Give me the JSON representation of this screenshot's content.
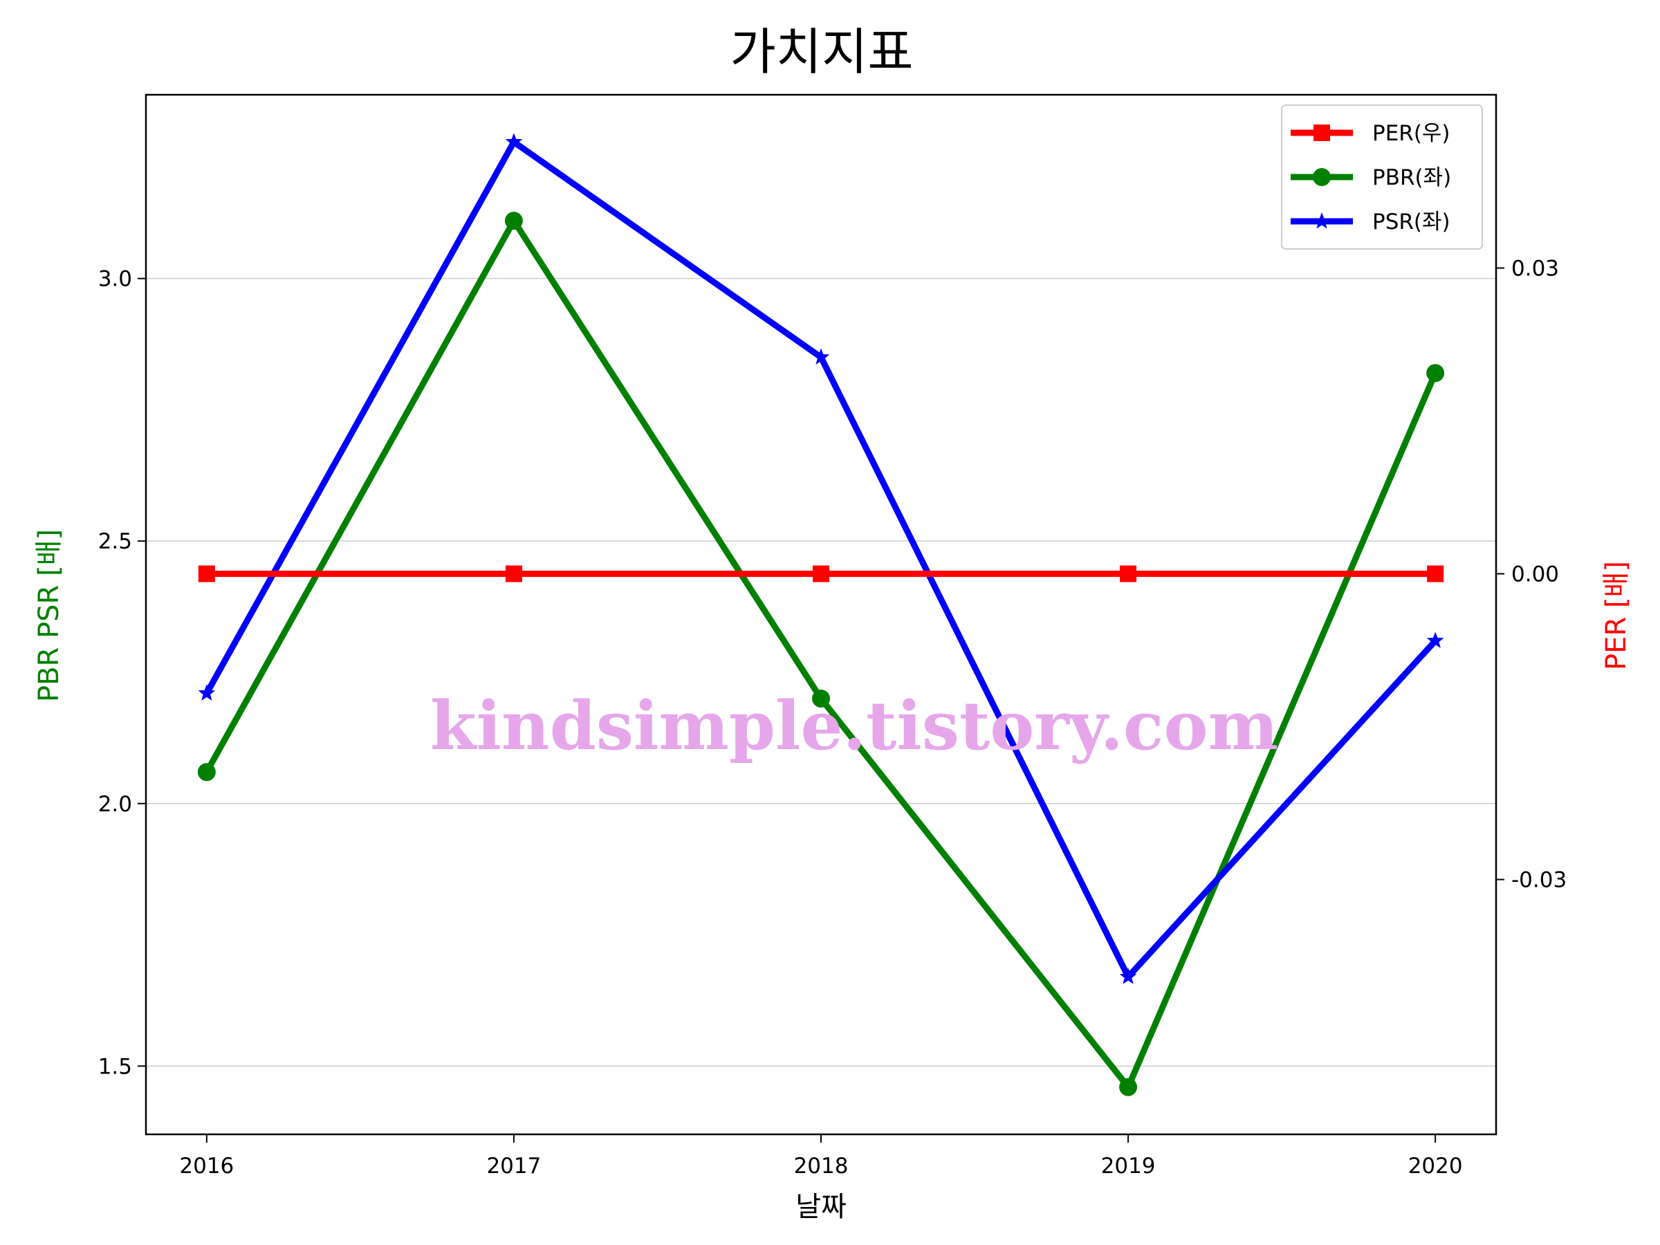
{
  "chart_data": {
    "type": "line",
    "title": "가치지표",
    "xlabel": "날짜",
    "ylabel_left": "PBR PSR [배]",
    "ylabel_right": "PER [배]",
    "x": [
      "2016",
      "2017",
      "2018",
      "2019",
      "2020"
    ],
    "ylim_left": [
      1.37,
      3.35
    ],
    "ylim_right": [
      -0.055,
      0.047
    ],
    "yticks_left": [
      "1.5",
      "2.0",
      "2.5",
      "3.0"
    ],
    "yticks_right": [
      "-0.03",
      "0.00",
      "0.03"
    ],
    "grid": "horizontal",
    "legend_position": "top-right",
    "series": [
      {
        "name": "PER(우)",
        "axis": "right",
        "color": "#ff0000",
        "marker": "square",
        "values": [
          0,
          0,
          0,
          0,
          0
        ]
      },
      {
        "name": "PBR(좌)",
        "axis": "left",
        "color": "#008000",
        "marker": "circle",
        "values": [
          2.06,
          3.11,
          2.2,
          1.46,
          2.82
        ]
      },
      {
        "name": "PSR(좌)",
        "axis": "left",
        "color": "#0000ff",
        "marker": "star",
        "values": [
          2.21,
          3.26,
          2.85,
          1.67,
          2.31
        ]
      }
    ],
    "watermark": "kindsimple.tistory.com"
  }
}
